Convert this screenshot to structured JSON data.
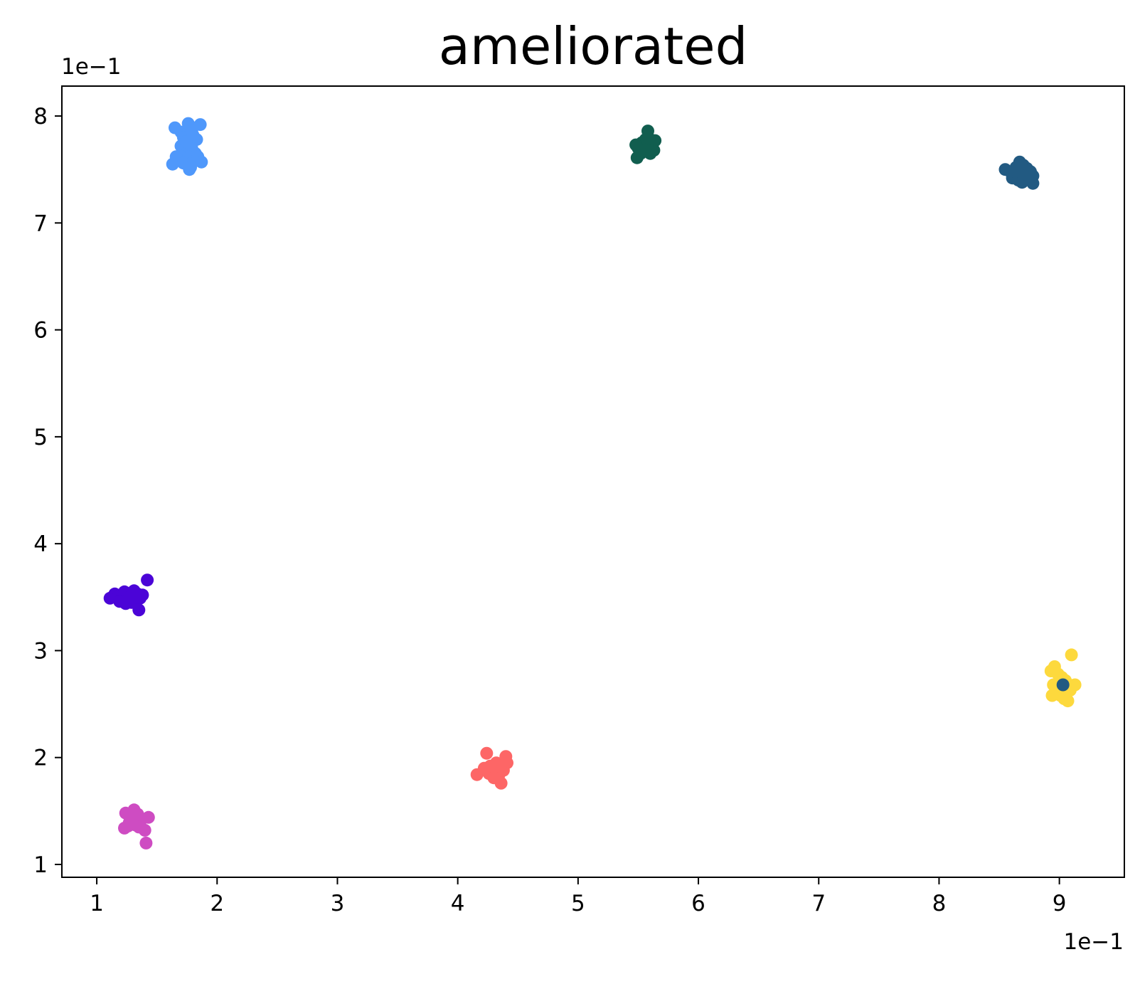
{
  "chart_data": {
    "type": "scatter",
    "title": "ameliorated",
    "xlabel": "",
    "ylabel": "",
    "x_offset_label": "1e−1",
    "y_offset_label": "1e−1",
    "xlim": [
      0.071,
      0.954
    ],
    "ylim": [
      0.088,
      0.828
    ],
    "xticks": [
      0.1,
      0.2,
      0.3,
      0.4,
      0.5,
      0.6,
      0.7,
      0.8,
      0.9
    ],
    "xtick_labels": [
      "1",
      "2",
      "3",
      "4",
      "5",
      "6",
      "7",
      "8",
      "9"
    ],
    "yticks": [
      0.1,
      0.2,
      0.3,
      0.4,
      0.5,
      0.6,
      0.7,
      0.8
    ],
    "ytick_labels": [
      "1",
      "2",
      "3",
      "4",
      "5",
      "6",
      "7",
      "8"
    ],
    "grid": false,
    "series": [
      {
        "color": "#4f98fb",
        "points": [
          [
            0.165,
            0.789
          ],
          [
            0.17,
            0.785
          ],
          [
            0.172,
            0.78
          ],
          [
            0.174,
            0.775
          ],
          [
            0.176,
            0.793
          ],
          [
            0.178,
            0.79
          ],
          [
            0.18,
            0.782
          ],
          [
            0.183,
            0.778
          ],
          [
            0.186,
            0.792
          ],
          [
            0.17,
            0.772
          ],
          [
            0.175,
            0.768
          ],
          [
            0.179,
            0.77
          ],
          [
            0.182,
            0.765
          ],
          [
            0.172,
            0.76
          ],
          [
            0.176,
            0.762
          ],
          [
            0.169,
            0.763
          ],
          [
            0.166,
            0.762
          ],
          [
            0.163,
            0.755
          ],
          [
            0.172,
            0.756
          ],
          [
            0.178,
            0.752
          ],
          [
            0.181,
            0.758
          ],
          [
            0.184,
            0.762
          ],
          [
            0.187,
            0.757
          ],
          [
            0.177,
            0.75
          ],
          [
            0.174,
            0.776
          ],
          [
            0.179,
            0.786
          ]
        ]
      },
      {
        "color": "#115e4f",
        "points": [
          [
            0.55,
            0.77
          ],
          [
            0.553,
            0.775
          ],
          [
            0.556,
            0.778
          ],
          [
            0.558,
            0.786
          ],
          [
            0.561,
            0.772
          ],
          [
            0.564,
            0.777
          ],
          [
            0.552,
            0.765
          ],
          [
            0.549,
            0.761
          ],
          [
            0.555,
            0.767
          ],
          [
            0.56,
            0.765
          ],
          [
            0.563,
            0.768
          ],
          [
            0.557,
            0.772
          ],
          [
            0.548,
            0.773
          ],
          [
            0.551,
            0.768
          ],
          [
            0.559,
            0.779
          ]
        ]
      },
      {
        "color": "#225a82",
        "points": [
          [
            0.855,
            0.75
          ],
          [
            0.86,
            0.747
          ],
          [
            0.864,
            0.752
          ],
          [
            0.867,
            0.757
          ],
          [
            0.87,
            0.754
          ],
          [
            0.873,
            0.751
          ],
          [
            0.876,
            0.748
          ],
          [
            0.878,
            0.744
          ],
          [
            0.861,
            0.742
          ],
          [
            0.866,
            0.74
          ],
          [
            0.869,
            0.738
          ],
          [
            0.872,
            0.742
          ],
          [
            0.877,
            0.74
          ],
          [
            0.878,
            0.737
          ],
          [
            0.868,
            0.745
          ],
          [
            0.863,
            0.748
          ],
          [
            0.874,
            0.745
          ],
          [
            0.871,
            0.749
          ]
        ]
      },
      {
        "color": "#4b04d7",
        "points": [
          [
            0.111,
            0.349
          ],
          [
            0.115,
            0.353
          ],
          [
            0.118,
            0.351
          ],
          [
            0.12,
            0.347
          ],
          [
            0.123,
            0.355
          ],
          [
            0.126,
            0.352
          ],
          [
            0.128,
            0.348
          ],
          [
            0.131,
            0.356
          ],
          [
            0.134,
            0.353
          ],
          [
            0.136,
            0.349
          ],
          [
            0.138,
            0.352
          ],
          [
            0.142,
            0.366
          ],
          [
            0.124,
            0.344
          ],
          [
            0.129,
            0.345
          ],
          [
            0.135,
            0.338
          ],
          [
            0.119,
            0.346
          ],
          [
            0.127,
            0.35
          ],
          [
            0.132,
            0.35
          ]
        ]
      },
      {
        "color": "#fd6666",
        "points": [
          [
            0.416,
            0.184
          ],
          [
            0.422,
            0.19
          ],
          [
            0.424,
            0.204
          ],
          [
            0.427,
            0.192
          ],
          [
            0.429,
            0.187
          ],
          [
            0.432,
            0.195
          ],
          [
            0.434,
            0.183
          ],
          [
            0.436,
            0.176
          ],
          [
            0.438,
            0.188
          ],
          [
            0.44,
            0.201
          ],
          [
            0.441,
            0.195
          ],
          [
            0.426,
            0.185
          ],
          [
            0.43,
            0.181
          ],
          [
            0.435,
            0.192
          ]
        ]
      },
      {
        "color": "#ce4cc2",
        "points": [
          [
            0.124,
            0.148
          ],
          [
            0.128,
            0.145
          ],
          [
            0.131,
            0.151
          ],
          [
            0.134,
            0.147
          ],
          [
            0.137,
            0.142
          ],
          [
            0.14,
            0.132
          ],
          [
            0.143,
            0.144
          ],
          [
            0.141,
            0.12
          ],
          [
            0.123,
            0.134
          ],
          [
            0.127,
            0.139
          ],
          [
            0.132,
            0.137
          ],
          [
            0.135,
            0.135
          ],
          [
            0.129,
            0.141
          ],
          [
            0.126,
            0.136
          ]
        ]
      },
      {
        "color": "#fdd93d",
        "points": [
          [
            0.893,
            0.281
          ],
          [
            0.896,
            0.285
          ],
          [
            0.899,
            0.278
          ],
          [
            0.902,
            0.275
          ],
          [
            0.905,
            0.272
          ],
          [
            0.908,
            0.268
          ],
          [
            0.91,
            0.296
          ],
          [
            0.913,
            0.268
          ],
          [
            0.895,
            0.268
          ],
          [
            0.898,
            0.262
          ],
          [
            0.901,
            0.258
          ],
          [
            0.904,
            0.255
          ],
          [
            0.907,
            0.253
          ],
          [
            0.894,
            0.258
          ],
          [
            0.909,
            0.263
          ],
          [
            0.903,
            0.265
          ],
          [
            0.9,
            0.27
          ]
        ]
      },
      {
        "color": "#225a82",
        "points": [
          [
            0.903,
            0.268
          ]
        ]
      }
    ]
  }
}
